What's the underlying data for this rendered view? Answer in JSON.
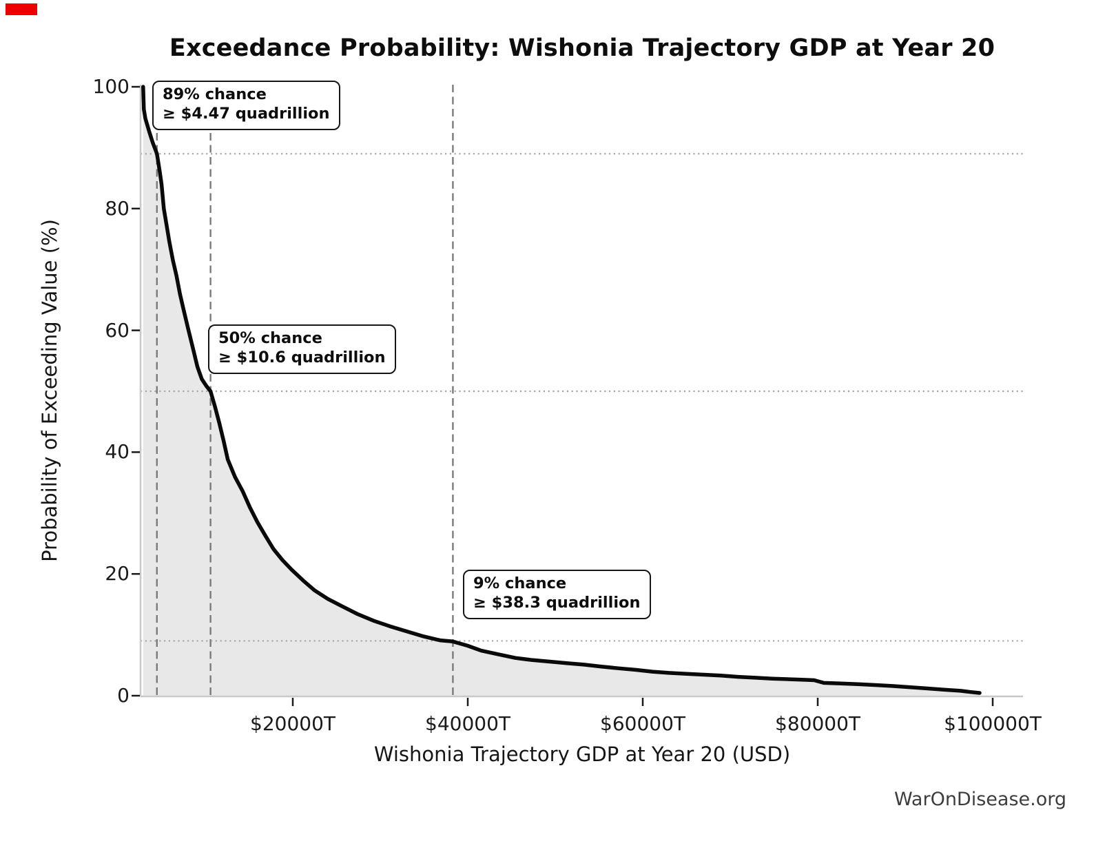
{
  "header": {
    "title": "Exceedance Probability: Wishonia Trajectory GDP at Year 20"
  },
  "footer": {
    "watermark": "WarOnDisease.org"
  },
  "marker": {
    "color": "#ee0000"
  },
  "chart_data": {
    "type": "line",
    "title": "Exceedance Probability: Wishonia Trajectory GDP at Year 20",
    "xlabel": "Wishonia Trajectory GDP at Year 20 (USD)",
    "ylabel": "Probability of Exceeding Value (%)",
    "x_unit": "trillion USD (T)",
    "xlim_T": [
      2700,
      104500
    ],
    "ylim_pct": [
      0,
      100
    ],
    "grid": "dotted horizontal and dashed vertical guide lines at annotated quantiles only",
    "legend_position": "none",
    "line_color": "#0a0a0a",
    "fill_color": "#e8e8e8",
    "dashed_guide_color": "#7a7a7a",
    "dotted_guide_color": "#a6a6a6",
    "spine_color": "#c8c8c8",
    "x_ticks": [
      {
        "value_T": 20000,
        "label": "$20000T"
      },
      {
        "value_T": 40000,
        "label": "$40000T"
      },
      {
        "value_T": 60000,
        "label": "$60000T"
      },
      {
        "value_T": 80000,
        "label": "$80000T"
      },
      {
        "value_T": 100000,
        "label": "$100000T"
      }
    ],
    "y_ticks": [
      {
        "value_pct": 0,
        "label": "0"
      },
      {
        "value_pct": 20,
        "label": "20"
      },
      {
        "value_pct": 40,
        "label": "40"
      },
      {
        "value_pct": 60,
        "label": "60"
      },
      {
        "value_pct": 80,
        "label": "80"
      },
      {
        "value_pct": 100,
        "label": "100"
      }
    ],
    "annotations": [
      {
        "prob_pct": 89,
        "gdp_T": 4470,
        "gdp_quadrillion": 4.47,
        "line1": "89% chance",
        "line2": "≥ $4.47 quadrillion"
      },
      {
        "prob_pct": 50,
        "gdp_T": 10600,
        "gdp_quadrillion": 10.6,
        "line1": "50% chance",
        "line2": "≥ $10.6 quadrillion"
      },
      {
        "prob_pct": 9,
        "gdp_T": 38300,
        "gdp_quadrillion": 38.3,
        "line1": "9% chance",
        "line2": "≥ $38.3 quadrillion"
      }
    ],
    "series": [
      {
        "name": "Exceedance probability of GDP at Year 20",
        "points_gdpT_probPct": [
          [
            2900,
            100
          ],
          [
            2980,
            96.3
          ],
          [
            3150,
            94.8
          ],
          [
            3600,
            92.6
          ],
          [
            4000,
            90.8
          ],
          [
            4470,
            89
          ],
          [
            4800,
            86
          ],
          [
            5000,
            84
          ],
          [
            5260,
            80
          ],
          [
            5550,
            77.5
          ],
          [
            5900,
            74.5
          ],
          [
            6300,
            71.5
          ],
          [
            6700,
            69
          ],
          [
            7100,
            66
          ],
          [
            7500,
            63.5
          ],
          [
            8000,
            60.5
          ],
          [
            8600,
            57
          ],
          [
            9100,
            54
          ],
          [
            9600,
            52
          ],
          [
            10100,
            50.9
          ],
          [
            10600,
            50
          ],
          [
            11100,
            47.5
          ],
          [
            11600,
            44.8
          ],
          [
            12100,
            41.8
          ],
          [
            12570,
            38.8
          ],
          [
            13400,
            35.9
          ],
          [
            14270,
            33.6
          ],
          [
            15100,
            30.9
          ],
          [
            15960,
            28.5
          ],
          [
            16900,
            26.2
          ],
          [
            17790,
            24.1
          ],
          [
            18800,
            22.3
          ],
          [
            19870,
            20.7
          ],
          [
            21200,
            18.9
          ],
          [
            22490,
            17.3
          ],
          [
            24000,
            15.9
          ],
          [
            25620,
            14.7
          ],
          [
            27400,
            13.4
          ],
          [
            29270,
            12.3
          ],
          [
            31100,
            11.4
          ],
          [
            32930,
            10.6
          ],
          [
            34800,
            9.8
          ],
          [
            36840,
            9.1
          ],
          [
            38300,
            8.9
          ],
          [
            40000,
            8.2
          ],
          [
            41540,
            7.4
          ],
          [
            43500,
            6.8
          ],
          [
            45450,
            6.2
          ],
          [
            47400,
            5.85
          ],
          [
            49370,
            5.6
          ],
          [
            51300,
            5.35
          ],
          [
            53280,
            5.1
          ],
          [
            55200,
            4.8
          ],
          [
            57200,
            4.5
          ],
          [
            59150,
            4.25
          ],
          [
            61110,
            3.95
          ],
          [
            63000,
            3.75
          ],
          [
            65030,
            3.6
          ],
          [
            67000,
            3.45
          ],
          [
            68940,
            3.3
          ],
          [
            70900,
            3.1
          ],
          [
            72860,
            2.95
          ],
          [
            74800,
            2.8
          ],
          [
            76770,
            2.7
          ],
          [
            78700,
            2.6
          ],
          [
            79600,
            2.55
          ],
          [
            80690,
            2.1
          ],
          [
            82650,
            2.0
          ],
          [
            84600,
            1.9
          ],
          [
            86550,
            1.75
          ],
          [
            88520,
            1.6
          ],
          [
            90470,
            1.4
          ],
          [
            92430,
            1.2
          ],
          [
            94400,
            1.0
          ],
          [
            96350,
            0.8
          ],
          [
            97500,
            0.6
          ],
          [
            98500,
            0.45
          ]
        ]
      }
    ]
  }
}
